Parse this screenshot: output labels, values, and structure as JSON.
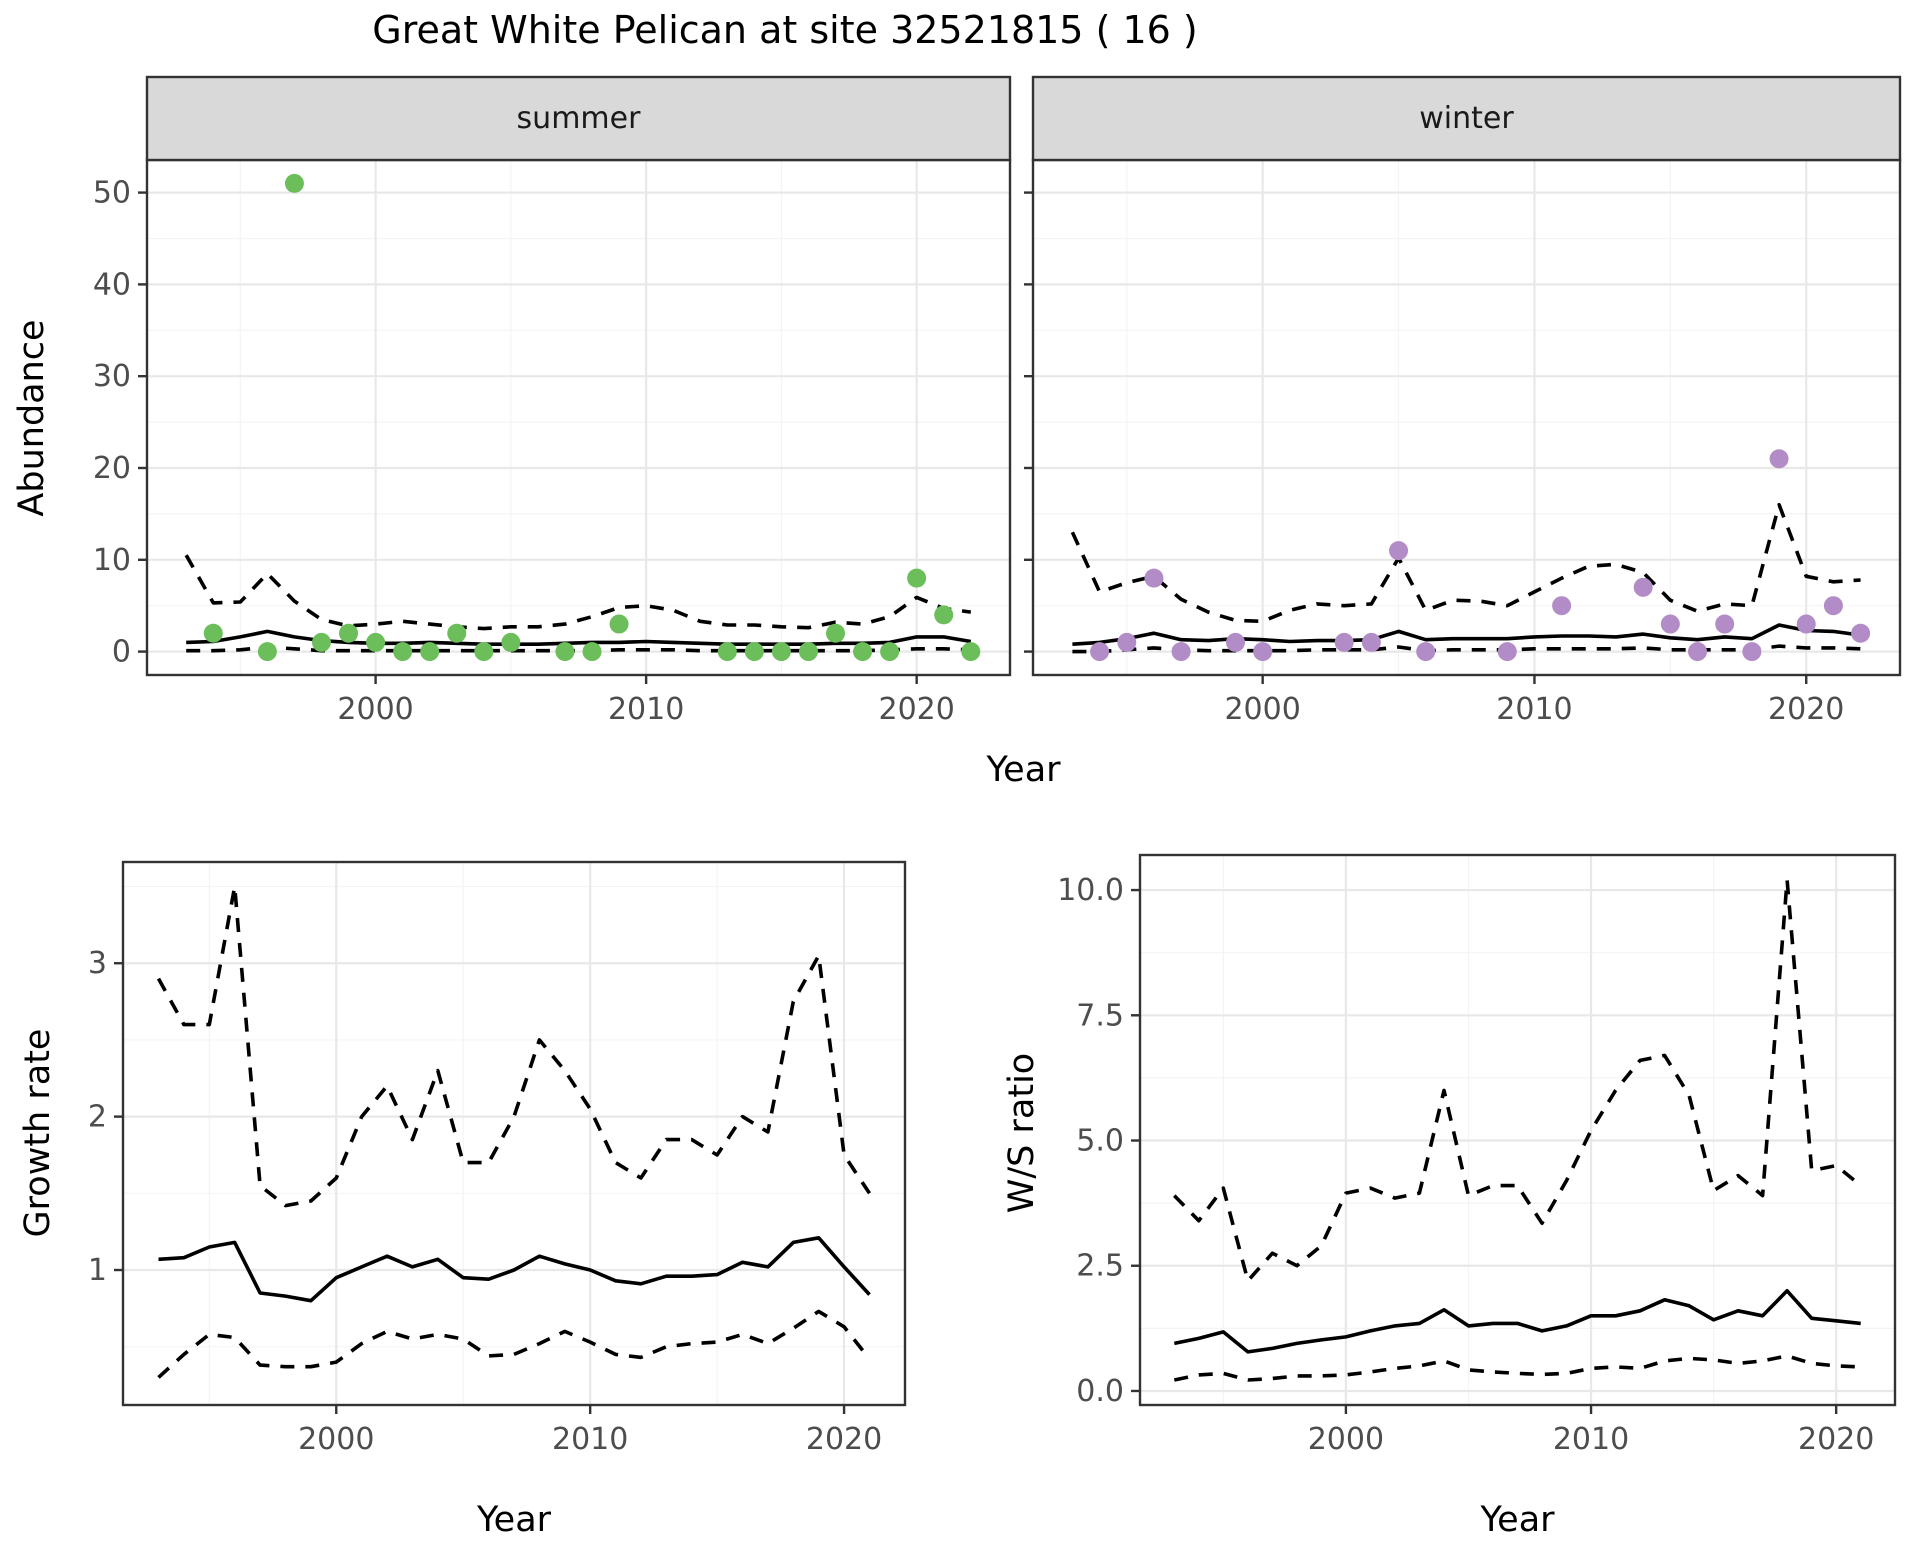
{
  "figure": {
    "title": "Great White Pelican at site 32521815 ( 16 )",
    "colors": {
      "summer_points": "#6BBE59",
      "winter_points": "#B28CC6",
      "line": "#000000",
      "strip_bg": "#D9D9D9",
      "panel_bg": "#FFFFFF",
      "grid_major": "#E8E8E8",
      "grid_minor": "#F4F4F4",
      "panel_border": "#333333",
      "tick_text": "#4D4D4D"
    }
  },
  "labels": {
    "x_axis_top": "Year",
    "x_axis_growth": "Year",
    "x_axis_ws": "Year",
    "abundance_axis": "Abundance",
    "growth_axis": "Growth rate",
    "ws_axis": "W/S ratio",
    "facet_summer": "summer",
    "facet_winter": "winter"
  },
  "chart_data": [
    {
      "id": "abundance_summer",
      "type": "scatter",
      "facet": "summer",
      "xlabel": "Year",
      "ylabel": "Abundance",
      "xlim": [
        1991.55,
        2023.45
      ],
      "ylim": [
        -2.55,
        53.55
      ],
      "xticks": [
        2000,
        2010,
        2020
      ],
      "xminor": [
        1995,
        2005,
        2015
      ],
      "yticks": [
        0,
        10,
        20,
        30,
        40,
        50
      ],
      "ytick_labels": [
        "0",
        "10",
        "20",
        "30",
        "40",
        "50"
      ],
      "yminor": [
        5,
        15,
        25,
        35,
        45
      ],
      "points": {
        "years": [
          1994,
          1996,
          1997,
          1998,
          1999,
          2000,
          2001,
          2002,
          2003,
          2004,
          2005,
          2007,
          2008,
          2009,
          2013,
          2014,
          2015,
          2016,
          2017,
          2018,
          2019,
          2020,
          2021,
          2022
        ],
        "values": [
          2,
          0,
          51,
          1,
          2,
          1,
          0,
          0,
          2,
          0,
          1,
          0,
          0,
          3,
          0,
          0,
          0,
          0,
          2,
          0,
          0,
          8,
          4,
          0
        ]
      },
      "median_line": {
        "years": [
          1993,
          1994,
          1995,
          1996,
          1997,
          1998,
          1999,
          2000,
          2001,
          2002,
          2003,
          2004,
          2005,
          2006,
          2007,
          2008,
          2009,
          2010,
          2011,
          2012,
          2013,
          2014,
          2015,
          2016,
          2017,
          2018,
          2019,
          2020,
          2021,
          2022
        ],
        "values": [
          1.0,
          1.1,
          1.6,
          2.2,
          1.6,
          1.2,
          1.0,
          0.9,
          0.9,
          1.0,
          0.9,
          0.8,
          0.8,
          0.8,
          0.9,
          1.0,
          1.0,
          1.1,
          1.0,
          0.9,
          0.8,
          0.8,
          0.8,
          0.8,
          0.9,
          0.9,
          1.0,
          1.6,
          1.6,
          1.1
        ]
      },
      "upper_ci": {
        "years": [
          1993,
          1994,
          1995,
          1996,
          1997,
          1998,
          1999,
          2000,
          2001,
          2002,
          2003,
          2004,
          2005,
          2006,
          2007,
          2008,
          2009,
          2010,
          2011,
          2012,
          2013,
          2014,
          2015,
          2016,
          2017,
          2018,
          2019,
          2020,
          2021,
          2022
        ],
        "values": [
          10.5,
          5.3,
          5.4,
          8.5,
          5.5,
          3.5,
          2.8,
          3.0,
          3.3,
          3.0,
          2.7,
          2.5,
          2.7,
          2.7,
          3.0,
          3.8,
          4.8,
          5.0,
          4.5,
          3.3,
          2.9,
          2.9,
          2.7,
          2.6,
          3.2,
          3.0,
          3.8,
          5.9,
          4.7,
          4.3
        ]
      },
      "lower_ci": {
        "years": [
          1993,
          1994,
          1995,
          1996,
          1997,
          1998,
          1999,
          2000,
          2001,
          2002,
          2003,
          2004,
          2005,
          2006,
          2007,
          2008,
          2009,
          2010,
          2011,
          2012,
          2013,
          2014,
          2015,
          2016,
          2017,
          2018,
          2019,
          2020,
          2021,
          2022
        ],
        "values": [
          0.1,
          0.1,
          0.2,
          0.5,
          0.3,
          0.1,
          0.1,
          0.1,
          0.1,
          0.1,
          0.1,
          0.1,
          0.1,
          0.1,
          0.1,
          0.1,
          0.2,
          0.2,
          0.2,
          0.1,
          0.1,
          0.1,
          0.1,
          0.1,
          0.1,
          0.1,
          0.2,
          0.3,
          0.3,
          0.2
        ]
      }
    },
    {
      "id": "abundance_winter",
      "type": "scatter",
      "facet": "winter",
      "xlabel": "Year",
      "ylabel": "Abundance",
      "xlim": [
        1991.55,
        2023.45
      ],
      "ylim": [
        -2.55,
        53.55
      ],
      "xticks": [
        2000,
        2010,
        2020
      ],
      "xminor": [
        1995,
        2005,
        2015
      ],
      "yticks": [
        0,
        10,
        20,
        30,
        40,
        50
      ],
      "ytick_labels": [
        "0",
        "10",
        "20",
        "30",
        "40",
        "50"
      ],
      "yminor": [
        5,
        15,
        25,
        35,
        45
      ],
      "points": {
        "years": [
          1994,
          1995,
          1996,
          1997,
          1999,
          2000,
          2003,
          2004,
          2005,
          2006,
          2009,
          2011,
          2014,
          2015,
          2016,
          2017,
          2018,
          2019,
          2020,
          2021,
          2022
        ],
        "values": [
          0,
          1,
          8,
          0,
          1,
          0,
          1,
          1,
          11,
          0,
          0,
          5,
          7,
          3,
          0,
          3,
          0,
          21,
          3,
          5,
          2
        ]
      },
      "median_line": {
        "years": [
          1993,
          1994,
          1995,
          1996,
          1997,
          1998,
          1999,
          2000,
          2001,
          2002,
          2003,
          2004,
          2005,
          2006,
          2007,
          2008,
          2009,
          2010,
          2011,
          2012,
          2013,
          2014,
          2015,
          2016,
          2017,
          2018,
          2019,
          2020,
          2021,
          2022
        ],
        "values": [
          0.8,
          1.0,
          1.4,
          2.0,
          1.3,
          1.2,
          1.4,
          1.3,
          1.1,
          1.2,
          1.2,
          1.3,
          2.2,
          1.3,
          1.4,
          1.4,
          1.4,
          1.6,
          1.7,
          1.7,
          1.6,
          1.9,
          1.5,
          1.3,
          1.6,
          1.4,
          2.9,
          2.3,
          2.2,
          1.8
        ]
      },
      "upper_ci": {
        "years": [
          1993,
          1994,
          1995,
          1996,
          1997,
          1998,
          1999,
          2000,
          2001,
          2002,
          2003,
          2004,
          2005,
          2006,
          2007,
          2008,
          2009,
          2010,
          2011,
          2012,
          2013,
          2014,
          2015,
          2016,
          2017,
          2018,
          2019,
          2020,
          2021,
          2022
        ],
        "values": [
          13,
          6.5,
          7.5,
          8.2,
          5.7,
          4.3,
          3.4,
          3.3,
          4.5,
          5.2,
          5.0,
          5.2,
          10.2,
          4.5,
          5.6,
          5.5,
          5.0,
          6.5,
          8.0,
          9.3,
          9.5,
          8.6,
          5.6,
          4.4,
          5.2,
          5.0,
          16.0,
          8.2,
          7.6,
          7.8
        ]
      },
      "lower_ci": {
        "years": [
          1993,
          1994,
          1995,
          1996,
          1997,
          1998,
          1999,
          2000,
          2001,
          2002,
          2003,
          2004,
          2005,
          2006,
          2007,
          2008,
          2009,
          2010,
          2011,
          2012,
          2013,
          2014,
          2015,
          2016,
          2017,
          2018,
          2019,
          2020,
          2021,
          2022
        ],
        "values": [
          0,
          0,
          0.2,
          0.4,
          0.2,
          0.1,
          0.1,
          0.1,
          0.1,
          0.2,
          0.2,
          0.2,
          0.5,
          0.1,
          0.2,
          0.2,
          0.2,
          0.3,
          0.3,
          0.3,
          0.3,
          0.4,
          0.2,
          0.2,
          0.2,
          0.2,
          0.6,
          0.4,
          0.4,
          0.3
        ]
      }
    },
    {
      "id": "growth_rate",
      "type": "line",
      "xlabel": "Year",
      "ylabel": "Growth rate",
      "xlim": [
        1991.6,
        2022.4
      ],
      "ylim": [
        0.12,
        3.66
      ],
      "xticks": [
        2000,
        2010,
        2020
      ],
      "xminor": [
        1995,
        2005,
        2015
      ],
      "yticks": [
        1,
        2,
        3
      ],
      "ytick_labels": [
        "1",
        "2",
        "3"
      ],
      "yminor": [
        0.5,
        1.5,
        2.5,
        3.5
      ],
      "median_line": {
        "years": [
          1993,
          1994,
          1995,
          1996,
          1997,
          1998,
          1999,
          2000,
          2001,
          2002,
          2003,
          2004,
          2005,
          2006,
          2007,
          2008,
          2009,
          2010,
          2011,
          2012,
          2013,
          2014,
          2015,
          2016,
          2017,
          2018,
          2019,
          2020,
          2021
        ],
        "values": [
          1.07,
          1.08,
          1.15,
          1.18,
          0.85,
          0.83,
          0.8,
          0.95,
          1.02,
          1.09,
          1.02,
          1.07,
          0.95,
          0.94,
          1.0,
          1.09,
          1.04,
          1.0,
          0.93,
          0.91,
          0.96,
          0.96,
          0.97,
          1.05,
          1.02,
          1.18,
          1.21,
          1.02,
          0.84
        ]
      },
      "upper_ci": {
        "years": [
          1993,
          1994,
          1995,
          1996,
          1997,
          1998,
          1999,
          2000,
          2001,
          2002,
          2003,
          2004,
          2005,
          2006,
          2007,
          2008,
          2009,
          2010,
          2011,
          2012,
          2013,
          2014,
          2015,
          2016,
          2017,
          2018,
          2019,
          2020,
          2021
        ],
        "values": [
          2.9,
          2.6,
          2.6,
          3.5,
          1.55,
          1.42,
          1.45,
          1.6,
          2.0,
          2.2,
          1.85,
          2.3,
          1.7,
          1.7,
          2.0,
          2.5,
          2.3,
          2.05,
          1.7,
          1.6,
          1.85,
          1.85,
          1.75,
          2.0,
          1.9,
          2.75,
          3.05,
          1.75,
          1.5
        ]
      },
      "lower_ci": {
        "years": [
          1993,
          1994,
          1995,
          1996,
          1997,
          1998,
          1999,
          2000,
          2001,
          2002,
          2003,
          2004,
          2005,
          2006,
          2007,
          2008,
          2009,
          2010,
          2011,
          2012,
          2013,
          2014,
          2015,
          2016,
          2017,
          2018,
          2019,
          2020,
          2021
        ],
        "values": [
          0.3,
          0.45,
          0.58,
          0.56,
          0.38,
          0.37,
          0.37,
          0.4,
          0.52,
          0.6,
          0.55,
          0.58,
          0.55,
          0.44,
          0.45,
          0.52,
          0.6,
          0.53,
          0.45,
          0.43,
          0.5,
          0.52,
          0.53,
          0.58,
          0.52,
          0.62,
          0.73,
          0.63,
          0.42
        ]
      }
    },
    {
      "id": "ws_ratio",
      "type": "line",
      "xlabel": "Year",
      "ylabel": "W/S ratio",
      "xlim": [
        1991.6,
        2022.4
      ],
      "ylim": [
        -0.28,
        10.7
      ],
      "xticks": [
        2000,
        2010,
        2020
      ],
      "xminor": [
        1995,
        2005,
        2015
      ],
      "yticks": [
        0,
        2.5,
        5,
        7.5,
        10
      ],
      "ytick_labels": [
        "0.0",
        "2.5",
        "5.0",
        "7.5",
        "10.0"
      ],
      "yminor": [
        1.25,
        3.75,
        6.25,
        8.75
      ],
      "median_line": {
        "years": [
          1993,
          1994,
          1995,
          1996,
          1997,
          1998,
          1999,
          2000,
          2001,
          2002,
          2003,
          2004,
          2005,
          2006,
          2007,
          2008,
          2009,
          2010,
          2011,
          2012,
          2013,
          2014,
          2015,
          2016,
          2017,
          2018,
          2019,
          2020,
          2021
        ],
        "values": [
          0.95,
          1.05,
          1.18,
          0.78,
          0.85,
          0.95,
          1.02,
          1.08,
          1.2,
          1.3,
          1.35,
          1.62,
          1.3,
          1.35,
          1.35,
          1.2,
          1.3,
          1.5,
          1.5,
          1.6,
          1.82,
          1.7,
          1.42,
          1.6,
          1.5,
          2.0,
          1.45,
          1.4,
          1.35
        ]
      },
      "upper_ci": {
        "years": [
          1993,
          1994,
          1995,
          1996,
          1997,
          1998,
          1999,
          2000,
          2001,
          2002,
          2003,
          2004,
          2005,
          2006,
          2007,
          2008,
          2009,
          2010,
          2011,
          2012,
          2013,
          2014,
          2015,
          2016,
          2017,
          2018,
          2019,
          2020,
          2021
        ],
        "values": [
          3.9,
          3.4,
          4.05,
          2.2,
          2.75,
          2.5,
          2.9,
          3.95,
          4.05,
          3.85,
          3.95,
          6.0,
          3.9,
          4.1,
          4.1,
          3.35,
          4.2,
          5.2,
          6.0,
          6.6,
          6.7,
          5.9,
          4.0,
          4.3,
          3.9,
          10.2,
          4.4,
          4.5,
          4.1
        ]
      },
      "lower_ci": {
        "years": [
          1993,
          1994,
          1995,
          1996,
          1997,
          1998,
          1999,
          2000,
          2001,
          2002,
          2003,
          2004,
          2005,
          2006,
          2007,
          2008,
          2009,
          2010,
          2011,
          2012,
          2013,
          2014,
          2015,
          2016,
          2017,
          2018,
          2019,
          2020,
          2021
        ],
        "values": [
          0.22,
          0.32,
          0.35,
          0.22,
          0.25,
          0.3,
          0.3,
          0.32,
          0.38,
          0.45,
          0.5,
          0.6,
          0.42,
          0.38,
          0.35,
          0.33,
          0.35,
          0.45,
          0.48,
          0.45,
          0.6,
          0.65,
          0.62,
          0.55,
          0.6,
          0.7,
          0.55,
          0.5,
          0.48
        ]
      }
    }
  ]
}
